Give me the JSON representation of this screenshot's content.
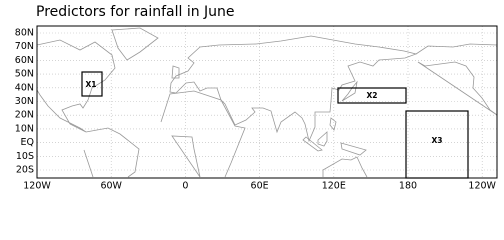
{
  "title": "Predictors for rainfall in June",
  "map": {
    "lat_labels": [
      "80N",
      "70N",
      "60N",
      "50N",
      "40N",
      "30N",
      "20N",
      "10N",
      "EQ",
      "10S",
      "20S"
    ],
    "lon_labels": [
      "120W",
      "60W",
      "0",
      "60E",
      "120E",
      "180",
      "120W"
    ],
    "regions": [
      {
        "label": "X1"
      },
      {
        "label": "X2"
      },
      {
        "label": "X3"
      }
    ]
  }
}
